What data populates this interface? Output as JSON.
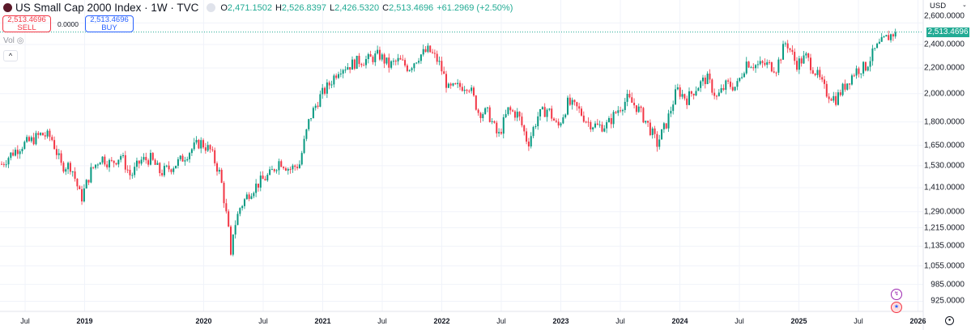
{
  "header": {
    "symbol": "US Small Cap 2000 Index · 1W · TVC",
    "open_label": "O",
    "open": "2,471.1502",
    "high_label": "H",
    "high": "2,526.8397",
    "low_label": "L",
    "low": "2,426.5320",
    "close_label": "C",
    "close": "2,513.4696",
    "change": "+61.2969 (+2.50%)"
  },
  "trade": {
    "sell_price": "2,513.4696",
    "sell_label": "SELL",
    "spread": "0.0000",
    "buy_price": "2,513.4696",
    "buy_label": "BUY"
  },
  "volume_label": "Vol",
  "collapse_icon": "^",
  "colors": {
    "up": "#089981",
    "down": "#f23645",
    "price_tag": "#22ab94"
  },
  "chart_data": {
    "type": "candlestick",
    "interval": "1W",
    "currency": "USD",
    "y_scale": "log",
    "last_price": "2,513.4696",
    "y_ticks": [
      "2,600.0000",
      "2,400.0000",
      "2,200.0000",
      "2,000.0000",
      "1,800.0000",
      "1,650.0000",
      "1,530.0000",
      "1,410.0000",
      "1,290.0000",
      "1,215.0000",
      "1,135.0000",
      "1,055.0000",
      "985.0000",
      "925.0000"
    ],
    "y_tick_values": [
      2600,
      2400,
      2200,
      2000,
      1800,
      1650,
      1530,
      1410,
      1290,
      1215,
      1135,
      1055,
      985,
      925
    ],
    "x_ticks": [
      {
        "label": "Jul",
        "year": false,
        "t": 2018.5
      },
      {
        "label": "2019",
        "year": true,
        "t": 2019
      },
      {
        "label": "2020",
        "year": true,
        "t": 2020
      },
      {
        "label": "Jul",
        "year": false,
        "t": 2020.5
      },
      {
        "label": "2021",
        "year": true,
        "t": 2021
      },
      {
        "label": "Jul",
        "year": false,
        "t": 2021.5
      },
      {
        "label": "2022",
        "year": true,
        "t": 2022
      },
      {
        "label": "Jul",
        "year": false,
        "t": 2022.5
      },
      {
        "label": "2023",
        "year": true,
        "t": 2023
      },
      {
        "label": "Jul",
        "year": false,
        "t": 2023.5
      },
      {
        "label": "2024",
        "year": true,
        "t": 2024
      },
      {
        "label": "Jul",
        "year": false,
        "t": 2024.5
      },
      {
        "label": "2025",
        "year": true,
        "t": 2025
      },
      {
        "label": "Jul",
        "year": false,
        "t": 2025.5
      },
      {
        "label": "2026",
        "year": true,
        "t": 2026
      }
    ],
    "start": 2018.29,
    "monthly_closes": [
      1540,
      1600,
      1650,
      1680,
      1720,
      1700,
      1530,
      1530,
      1350,
      1500,
      1580,
      1540,
      1590,
      1470,
      1560,
      1570,
      1490,
      1520,
      1560,
      1620,
      1670,
      1620,
      1480,
      1150,
      1310,
      1390,
      1440,
      1480,
      1560,
      1510,
      1540,
      1820,
      1970,
      2070,
      2200,
      2220,
      2260,
      2270,
      2310,
      2220,
      2260,
      2200,
      2300,
      2350,
      2250,
      2030,
      2050,
      2070,
      1870,
      1860,
      1700,
      1880,
      1850,
      1660,
      1840,
      1890,
      1760,
      1930,
      1890,
      1800,
      1770,
      1780,
      1880,
      1960,
      1900,
      1790,
      1660,
      1800,
      2030,
      1960,
      2050,
      2120,
      1970,
      2070,
      2050,
      2250,
      2220,
      2230,
      2200,
      2430,
      2230,
      2290,
      2160,
      2010,
      1960,
      2070,
      2180,
      2210,
      2360,
      2450,
      2513
    ]
  }
}
